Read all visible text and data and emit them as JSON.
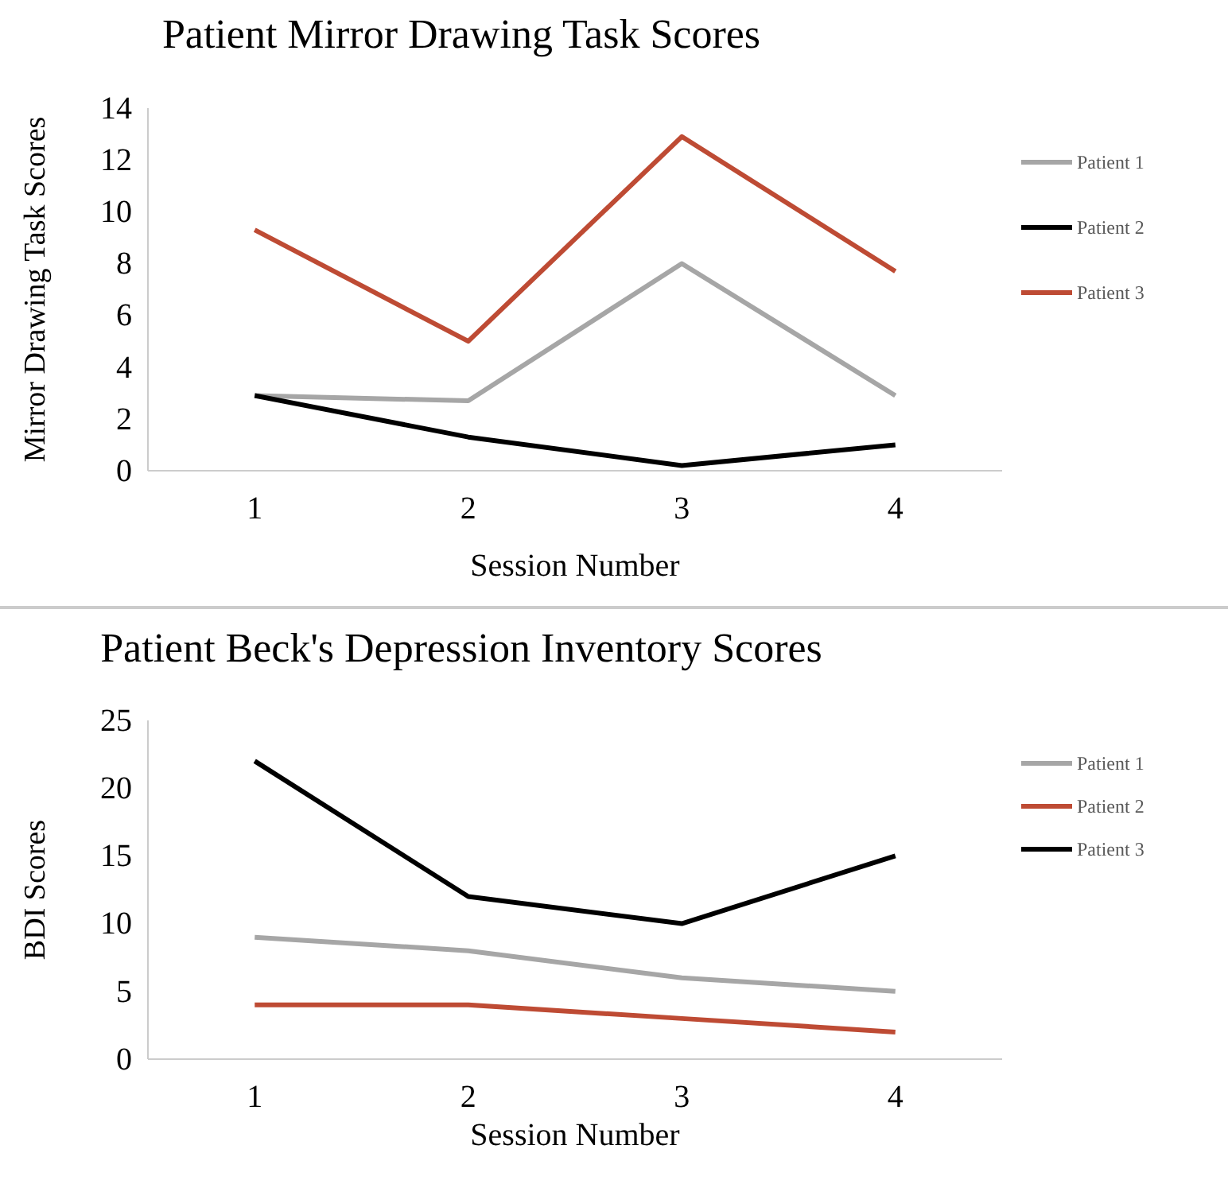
{
  "chart_data": [
    {
      "type": "line",
      "title": "Patient Mirror Drawing Task Scores",
      "xlabel": "Session Number",
      "ylabel": "Mirror Drawing Task Scores",
      "categories": [
        "1",
        "2",
        "3",
        "4"
      ],
      "ylim": [
        0,
        14
      ],
      "yticks": [
        0,
        2,
        4,
        6,
        8,
        10,
        12,
        14
      ],
      "grid": false,
      "legend": "right",
      "series": [
        {
          "name": "Patient 1",
          "color": "#a6a6a6",
          "values": [
            2.9,
            2.7,
            8,
            2.9
          ]
        },
        {
          "name": "Patient 2",
          "color": "#000000",
          "values": [
            2.9,
            1.3,
            0.2,
            1
          ]
        },
        {
          "name": "Patient 3",
          "color": "#be4b34",
          "values": [
            9.3,
            5,
            12.9,
            7.7
          ]
        }
      ]
    },
    {
      "type": "line",
      "title": "Patient Beck's Depression Inventory Scores",
      "xlabel": "Session Number",
      "ylabel": "BDI Scores",
      "categories": [
        "1",
        "2",
        "3",
        "4"
      ],
      "ylim": [
        0,
        25
      ],
      "yticks": [
        0,
        5,
        10,
        15,
        20,
        25
      ],
      "grid": false,
      "legend": "right",
      "series": [
        {
          "name": "Patient 1",
          "color": "#a6a6a6",
          "values": [
            9,
            8,
            6,
            5
          ]
        },
        {
          "name": "Patient 2",
          "color": "#be4b34",
          "values": [
            4,
            4,
            3,
            2
          ]
        },
        {
          "name": "Patient 3",
          "color": "#000000",
          "values": [
            22,
            12,
            10,
            15
          ]
        }
      ]
    }
  ]
}
